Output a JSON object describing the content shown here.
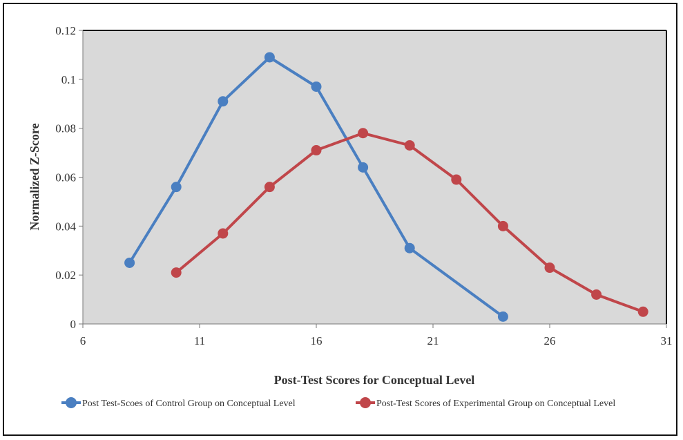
{
  "chart_data": {
    "type": "line",
    "title": "",
    "xlabel": "Post-Test Scores for Conceptual Level",
    "ylabel": "Normalized Z-Score",
    "xlim": [
      6,
      31
    ],
    "ylim": [
      0,
      0.12
    ],
    "x_ticks": [
      "6",
      "11",
      "16",
      "21",
      "26",
      "31"
    ],
    "y_ticks": [
      "0",
      "0.02",
      "0.04",
      "0.06",
      "0.08",
      "0.1",
      "0.12"
    ],
    "grid": false,
    "legend_position": "bottom",
    "plot_background": "#d9d9d9",
    "series": [
      {
        "name": "Post Test-Scoes of Control Group on Conceptual Level",
        "color": "#4a7fc1",
        "x": [
          8,
          10,
          12,
          14,
          16,
          18,
          20,
          24
        ],
        "y": [
          0.025,
          0.056,
          0.091,
          0.109,
          0.097,
          0.064,
          0.031,
          0.003
        ]
      },
      {
        "name": "Post-Test Scores of Experimental Group on Conceptual Level",
        "color": "#c0464a",
        "x": [
          10,
          12,
          14,
          16,
          18,
          20,
          22,
          24,
          26,
          28,
          30
        ],
        "y": [
          0.021,
          0.037,
          0.056,
          0.071,
          0.078,
          0.073,
          0.059,
          0.04,
          0.023,
          0.012,
          0.005
        ]
      }
    ]
  }
}
